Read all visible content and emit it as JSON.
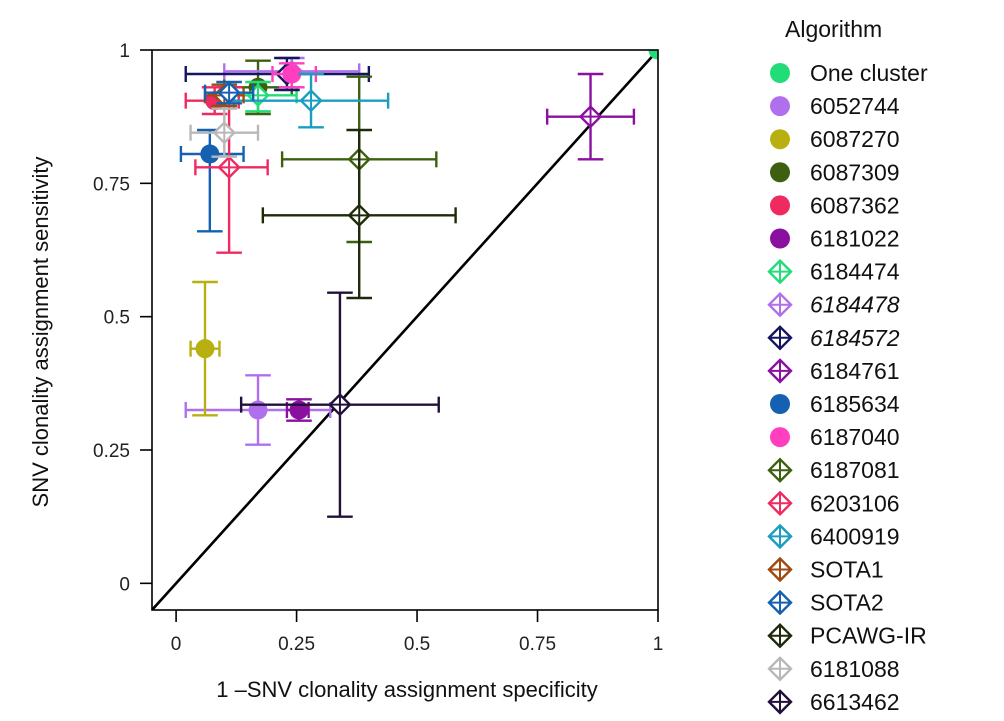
{
  "chart_data": {
    "type": "scatter",
    "title": "",
    "xlabel": "1 –SNV clonality assignment specificity",
    "ylabel": "SNV clonality assignment sensitivity",
    "xlim": [
      -0.05,
      1
    ],
    "ylim": [
      -0.05,
      1
    ],
    "xticks": [
      0,
      0.25,
      0.5,
      0.75,
      1
    ],
    "xtick_labels": [
      "0",
      "0.25",
      "0.5",
      "0.75",
      "1"
    ],
    "yticks": [
      0,
      0.25,
      0.5,
      0.75,
      1
    ],
    "ytick_labels": [
      "0",
      "0.25",
      "0.5",
      "0.75",
      "1"
    ],
    "diagonal": true,
    "legend_title": "Algorithm",
    "legend_position": "right",
    "series": [
      {
        "name": "One cluster",
        "color": "#22dd77",
        "marker": "circle",
        "italic": false,
        "x": 1.0,
        "y": 1.0,
        "xerr": null,
        "yerr": null
      },
      {
        "name": "6052744",
        "color": "#b070ee",
        "marker": "circle",
        "italic": false,
        "x": 0.17,
        "y": 0.325,
        "xerr": [
          0.02,
          0.32
        ],
        "yerr": [
          0.26,
          0.39
        ]
      },
      {
        "name": "6087270",
        "color": "#b8b010",
        "marker": "circle",
        "italic": false,
        "x": 0.06,
        "y": 0.44,
        "xerr": [
          0.03,
          0.09
        ],
        "yerr": [
          0.315,
          0.565
        ]
      },
      {
        "name": "6087309",
        "color": "#3d6010",
        "marker": "circle",
        "italic": false,
        "x": 0.17,
        "y": 0.93,
        "xerr": [
          0.1,
          0.24
        ],
        "yerr": [
          0.88,
          0.98
        ]
      },
      {
        "name": "6087362",
        "color": "#ee2a60",
        "marker": "circle",
        "italic": false,
        "x": 0.08,
        "y": 0.905,
        "xerr": [
          0.02,
          0.13
        ],
        "yerr": [
          0.88,
          0.93
        ]
      },
      {
        "name": "6181022",
        "color": "#8a10a0",
        "marker": "circle",
        "italic": false,
        "x": 0.255,
        "y": 0.325,
        "xerr": [
          0.23,
          0.275
        ],
        "yerr": [
          0.305,
          0.345
        ]
      },
      {
        "name": "6184474",
        "color": "#22dd77",
        "marker": "diamond",
        "italic": false,
        "x": 0.17,
        "y": 0.915,
        "xerr": [
          0.11,
          0.25
        ],
        "yerr": [
          0.885,
          0.94
        ]
      },
      {
        "name": "6184478",
        "color": "#b070ee",
        "marker": "diamond",
        "italic": true,
        "x": 0.24,
        "y": 0.96,
        "xerr": [
          0.1,
          0.38
        ],
        "yerr": [
          0.93,
          0.985
        ]
      },
      {
        "name": "6184572",
        "color": "#151560",
        "marker": "diamond",
        "italic": true,
        "x": 0.23,
        "y": 0.955,
        "xerr": [
          0.02,
          0.4
        ],
        "yerr": [
          0.925,
          0.985
        ]
      },
      {
        "name": "6184761",
        "color": "#8a10a0",
        "marker": "diamond",
        "italic": false,
        "x": 0.86,
        "y": 0.875,
        "xerr": [
          0.77,
          0.95
        ],
        "yerr": [
          0.795,
          0.955
        ]
      },
      {
        "name": "6185634",
        "color": "#1560b0",
        "marker": "circle",
        "italic": false,
        "x": 0.07,
        "y": 0.805,
        "xerr": [
          0.01,
          0.14
        ],
        "yerr": [
          0.66,
          0.85
        ]
      },
      {
        "name": "6187040",
        "color": "#ff3fbf",
        "marker": "circle",
        "italic": false,
        "x": 0.24,
        "y": 0.955,
        "xerr": [
          0.2,
          0.29
        ],
        "yerr": [
          0.93,
          0.975
        ]
      },
      {
        "name": "6187081",
        "color": "#3d6010",
        "marker": "diamond",
        "italic": false,
        "x": 0.38,
        "y": 0.795,
        "xerr": [
          0.22,
          0.54
        ],
        "yerr": [
          0.64,
          0.95
        ]
      },
      {
        "name": "6203106",
        "color": "#ee2a60",
        "marker": "diamond",
        "italic": false,
        "x": 0.11,
        "y": 0.78,
        "xerr": [
          0.04,
          0.19
        ],
        "yerr": [
          0.62,
          0.93
        ]
      },
      {
        "name": "6400919",
        "color": "#1a9ec0",
        "marker": "diamond",
        "italic": false,
        "x": 0.28,
        "y": 0.905,
        "xerr": [
          0.12,
          0.44
        ],
        "yerr": [
          0.855,
          0.955
        ]
      },
      {
        "name": "SOTA1",
        "color": "#a04a10",
        "marker": "diamond",
        "italic": false,
        "x": 0.1,
        "y": 0.915,
        "xerr": [
          0.06,
          0.14
        ],
        "yerr": [
          0.895,
          0.935
        ]
      },
      {
        "name": "SOTA2",
        "color": "#1560b0",
        "marker": "diamond",
        "italic": false,
        "x": 0.11,
        "y": 0.92,
        "xerr": [
          0.06,
          0.16
        ],
        "yerr": [
          0.9,
          0.94
        ]
      },
      {
        "name": "PCAWG-IR",
        "color": "#1e2a0a",
        "marker": "diamond",
        "italic": false,
        "x": 0.38,
        "y": 0.69,
        "xerr": [
          0.18,
          0.58
        ],
        "yerr": [
          0.535,
          0.85
        ]
      },
      {
        "name": "6181088",
        "color": "#b8b8b8",
        "marker": "diamond",
        "italic": false,
        "x": 0.1,
        "y": 0.845,
        "xerr": [
          0.03,
          0.17
        ],
        "yerr": [
          0.8,
          0.89
        ]
      },
      {
        "name": "6613462",
        "color": "#22103a",
        "marker": "diamond",
        "italic": false,
        "x": 0.34,
        "y": 0.335,
        "xerr": [
          0.135,
          0.545
        ],
        "yerr": [
          0.125,
          0.545
        ]
      }
    ]
  }
}
